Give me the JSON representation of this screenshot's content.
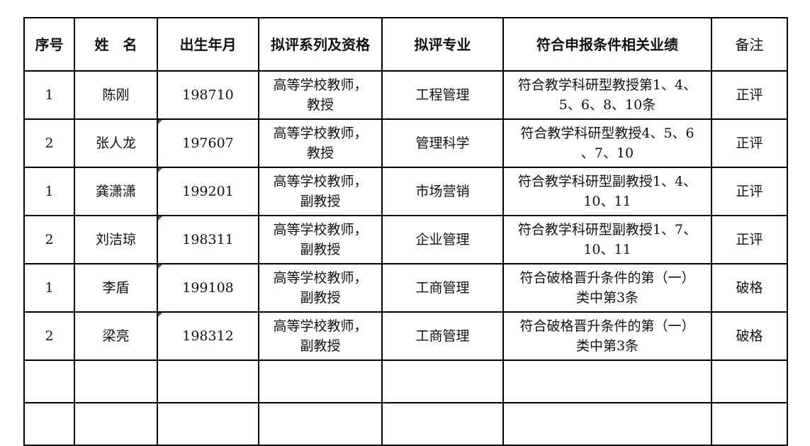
{
  "headers": [
    "序号",
    "姓　名",
    "出生年月",
    "拟评系列及资格",
    "拟评专业",
    "符合申报条件相关业绩",
    "备注"
  ],
  "rows": [
    {
      "no": "1",
      "name": "陈刚",
      "birth": "198710",
      "series": [
        "高等学校教师，",
        "教授"
      ],
      "major": "工程管理",
      "achievements": [
        "符合教学科研型教授第1、4、",
        "5、6、8、10条"
      ],
      "remark": "正评",
      "text_flag": false
    },
    {
      "no": "2",
      "name": "张人龙",
      "birth": "197607",
      "series": [
        "高等学校教师，",
        "教授"
      ],
      "major": "管理科学",
      "achievements": [
        "符合教学科研型教授4、5、6",
        "、7、10"
      ],
      "remark": "正评",
      "text_flag": true
    },
    {
      "no": "1",
      "name": "龚潇潇",
      "birth": "199201",
      "series": [
        "高等学校教师，",
        "副教授"
      ],
      "major": "市场营销",
      "achievements": [
        "符合教学科研型副教授1、4、",
        "10、11"
      ],
      "remark": "正评",
      "text_flag": true
    },
    {
      "no": "2",
      "name": "刘洁琼",
      "birth": "198311",
      "series": [
        "高等学校教师，",
        "副教授"
      ],
      "major": "企业管理",
      "achievements": [
        "符合教学科研型副教授1、7、",
        "10、11"
      ],
      "remark": "正评",
      "text_flag": true
    },
    {
      "no": "1",
      "name": "李盾",
      "birth": "199108",
      "series": [
        "高等学校教师，",
        "副教授"
      ],
      "major": "工商管理",
      "achievements": [
        "符合破格晋升条件的第（一）",
        "类中第3条"
      ],
      "remark": "破格",
      "text_flag": true
    },
    {
      "no": "2",
      "name": "梁亮",
      "birth": "198312",
      "series": [
        "高等学校教师，",
        "副教授"
      ],
      "major": "工商管理",
      "achievements": [
        "符合破格晋升条件的第（一）",
        "类中第3条"
      ],
      "remark": "破格",
      "text_flag": true
    }
  ],
  "colors": {
    "border": "#000000",
    "text_number_flag": "#1a7f1a"
  }
}
